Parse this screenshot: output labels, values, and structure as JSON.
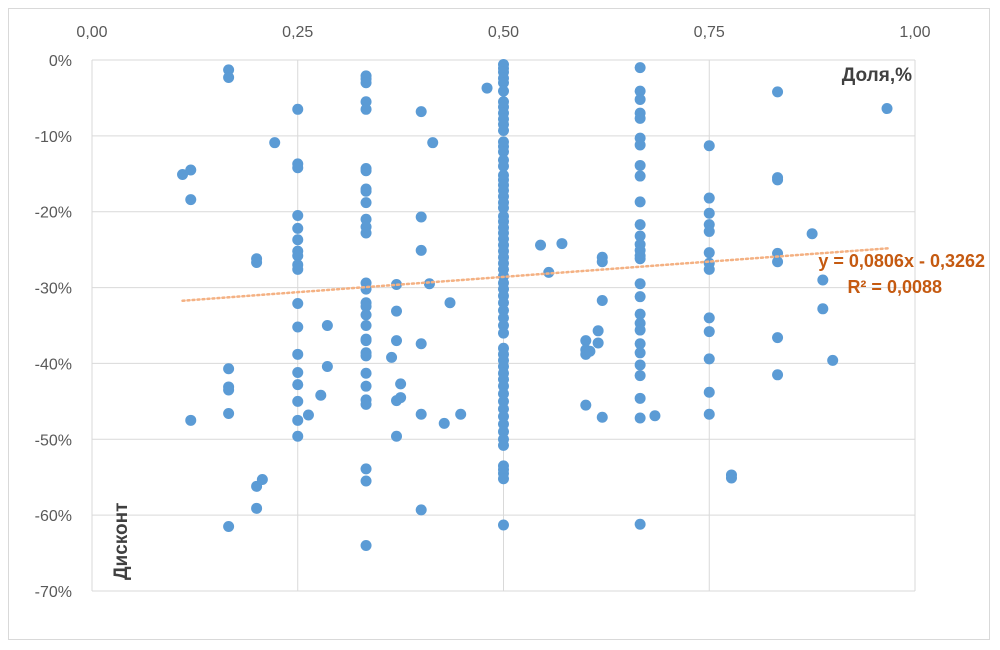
{
  "chart_data": {
    "type": "scatter",
    "title": "",
    "xlabel": "Доля,%",
    "ylabel": "Дисконт",
    "xlim": [
      0,
      1
    ],
    "ylim": [
      -0.7,
      0
    ],
    "x_ticks": [
      "0,00",
      "0,25",
      "0,50",
      "0,75",
      "1,00"
    ],
    "y_ticks": [
      "0%",
      "-10%",
      "-20%",
      "-30%",
      "-40%",
      "-50%",
      "-60%",
      "-70%"
    ],
    "x_axis_position": "top",
    "grid": true,
    "legend": "none",
    "marker_color": "#5b9bd5",
    "trendline": {
      "type": "linear",
      "slope": 0.0806,
      "intercept": -0.3262,
      "x_range": [
        0.11,
        0.97
      ],
      "equation": "y = 0,0806x - 0,3262",
      "r_squared": "R² = 0,0088",
      "color": "#f4b183",
      "label_color": "#c55a11"
    },
    "series": [
      {
        "points": [
          [
            0.11,
            -0.151
          ],
          [
            0.12,
            -0.145
          ],
          [
            0.12,
            -0.184
          ],
          [
            0.12,
            -0.475
          ],
          [
            0.166,
            -0.013
          ],
          [
            0.166,
            -0.023
          ],
          [
            0.166,
            -0.407
          ],
          [
            0.166,
            -0.431
          ],
          [
            0.166,
            -0.435
          ],
          [
            0.166,
            -0.466
          ],
          [
            0.166,
            -0.615
          ],
          [
            0.2,
            -0.262
          ],
          [
            0.2,
            -0.267
          ],
          [
            0.2,
            -0.562
          ],
          [
            0.2,
            -0.591
          ],
          [
            0.207,
            -0.553
          ],
          [
            0.222,
            -0.109
          ],
          [
            0.25,
            -0.065
          ],
          [
            0.25,
            -0.137
          ],
          [
            0.25,
            -0.142
          ],
          [
            0.25,
            -0.205
          ],
          [
            0.25,
            -0.222
          ],
          [
            0.25,
            -0.237
          ],
          [
            0.25,
            -0.252
          ],
          [
            0.25,
            -0.258
          ],
          [
            0.25,
            -0.27
          ],
          [
            0.25,
            -0.276
          ],
          [
            0.25,
            -0.321
          ],
          [
            0.25,
            -0.352
          ],
          [
            0.25,
            -0.388
          ],
          [
            0.25,
            -0.412
          ],
          [
            0.25,
            -0.428
          ],
          [
            0.25,
            -0.45
          ],
          [
            0.25,
            -0.475
          ],
          [
            0.25,
            -0.496
          ],
          [
            0.263,
            -0.468
          ],
          [
            0.278,
            -0.442
          ],
          [
            0.286,
            -0.35
          ],
          [
            0.286,
            -0.404
          ],
          [
            0.333,
            -0.021
          ],
          [
            0.333,
            -0.025
          ],
          [
            0.333,
            -0.03
          ],
          [
            0.333,
            -0.055
          ],
          [
            0.333,
            -0.065
          ],
          [
            0.333,
            -0.143
          ],
          [
            0.333,
            -0.146
          ],
          [
            0.333,
            -0.17
          ],
          [
            0.333,
            -0.173
          ],
          [
            0.333,
            -0.188
          ],
          [
            0.333,
            -0.21
          ],
          [
            0.333,
            -0.22
          ],
          [
            0.333,
            -0.228
          ],
          [
            0.333,
            -0.294
          ],
          [
            0.333,
            -0.302
          ],
          [
            0.333,
            -0.32
          ],
          [
            0.333,
            -0.325
          ],
          [
            0.333,
            -0.336
          ],
          [
            0.333,
            -0.35
          ],
          [
            0.333,
            -0.368
          ],
          [
            0.333,
            -0.37
          ],
          [
            0.333,
            -0.386
          ],
          [
            0.333,
            -0.39
          ],
          [
            0.333,
            -0.413
          ],
          [
            0.333,
            -0.43
          ],
          [
            0.333,
            -0.448
          ],
          [
            0.333,
            -0.454
          ],
          [
            0.333,
            -0.539
          ],
          [
            0.333,
            -0.555
          ],
          [
            0.333,
            -0.64
          ],
          [
            0.364,
            -0.392
          ],
          [
            0.37,
            -0.296
          ],
          [
            0.37,
            -0.331
          ],
          [
            0.37,
            -0.37
          ],
          [
            0.37,
            -0.449
          ],
          [
            0.37,
            -0.496
          ],
          [
            0.375,
            -0.427
          ],
          [
            0.375,
            -0.445
          ],
          [
            0.4,
            -0.068
          ],
          [
            0.4,
            -0.207
          ],
          [
            0.4,
            -0.251
          ],
          [
            0.4,
            -0.374
          ],
          [
            0.4,
            -0.467
          ],
          [
            0.4,
            -0.593
          ],
          [
            0.41,
            -0.295
          ],
          [
            0.414,
            -0.109
          ],
          [
            0.428,
            -0.479
          ],
          [
            0.435,
            -0.32
          ],
          [
            0.448,
            -0.467
          ],
          [
            0.48,
            -0.037
          ],
          [
            0.5,
            -0.006
          ],
          [
            0.5,
            -0.011
          ],
          [
            0.5,
            -0.016
          ],
          [
            0.5,
            -0.024
          ],
          [
            0.5,
            -0.03
          ],
          [
            0.5,
            -0.041
          ],
          [
            0.5,
            -0.055
          ],
          [
            0.5,
            -0.062
          ],
          [
            0.5,
            -0.07
          ],
          [
            0.5,
            -0.078
          ],
          [
            0.5,
            -0.085
          ],
          [
            0.5,
            -0.093
          ],
          [
            0.5,
            -0.108
          ],
          [
            0.5,
            -0.114
          ],
          [
            0.5,
            -0.121
          ],
          [
            0.5,
            -0.132
          ],
          [
            0.5,
            -0.14
          ],
          [
            0.5,
            -0.152
          ],
          [
            0.5,
            -0.158
          ],
          [
            0.5,
            -0.165
          ],
          [
            0.5,
            -0.172
          ],
          [
            0.5,
            -0.18
          ],
          [
            0.5,
            -0.188
          ],
          [
            0.5,
            -0.195
          ],
          [
            0.5,
            -0.206
          ],
          [
            0.5,
            -0.213
          ],
          [
            0.5,
            -0.221
          ],
          [
            0.5,
            -0.228
          ],
          [
            0.5,
            -0.236
          ],
          [
            0.5,
            -0.244
          ],
          [
            0.5,
            -0.252
          ],
          [
            0.5,
            -0.26
          ],
          [
            0.5,
            -0.268
          ],
          [
            0.5,
            -0.276
          ],
          [
            0.5,
            -0.285
          ],
          [
            0.5,
            -0.294
          ],
          [
            0.5,
            -0.302
          ],
          [
            0.5,
            -0.311
          ],
          [
            0.5,
            -0.32
          ],
          [
            0.5,
            -0.33
          ],
          [
            0.5,
            -0.34
          ],
          [
            0.5,
            -0.35
          ],
          [
            0.5,
            -0.36
          ],
          [
            0.5,
            -0.38
          ],
          [
            0.5,
            -0.388
          ],
          [
            0.5,
            -0.396
          ],
          [
            0.5,
            -0.404
          ],
          [
            0.5,
            -0.413
          ],
          [
            0.5,
            -0.421
          ],
          [
            0.5,
            -0.43
          ],
          [
            0.5,
            -0.44
          ],
          [
            0.5,
            -0.45
          ],
          [
            0.5,
            -0.46
          ],
          [
            0.5,
            -0.47
          ],
          [
            0.5,
            -0.48
          ],
          [
            0.5,
            -0.49
          ],
          [
            0.5,
            -0.5
          ],
          [
            0.5,
            -0.508
          ],
          [
            0.5,
            -0.535
          ],
          [
            0.5,
            -0.54
          ],
          [
            0.5,
            -0.545
          ],
          [
            0.5,
            -0.552
          ],
          [
            0.5,
            -0.613
          ],
          [
            0.545,
            -0.244
          ],
          [
            0.555,
            -0.28
          ],
          [
            0.571,
            -0.242
          ],
          [
            0.6,
            -0.37
          ],
          [
            0.6,
            -0.382
          ],
          [
            0.6,
            -0.388
          ],
          [
            0.6,
            -0.455
          ],
          [
            0.605,
            -0.384
          ],
          [
            0.615,
            -0.357
          ],
          [
            0.615,
            -0.373
          ],
          [
            0.62,
            -0.26
          ],
          [
            0.62,
            -0.266
          ],
          [
            0.62,
            -0.317
          ],
          [
            0.62,
            -0.471
          ],
          [
            0.666,
            -0.01
          ],
          [
            0.666,
            -0.041
          ],
          [
            0.666,
            -0.052
          ],
          [
            0.666,
            -0.07
          ],
          [
            0.666,
            -0.077
          ],
          [
            0.666,
            -0.103
          ],
          [
            0.666,
            -0.112
          ],
          [
            0.666,
            -0.139
          ],
          [
            0.666,
            -0.153
          ],
          [
            0.666,
            -0.187
          ],
          [
            0.666,
            -0.217
          ],
          [
            0.666,
            -0.232
          ],
          [
            0.666,
            -0.243
          ],
          [
            0.666,
            -0.251
          ],
          [
            0.666,
            -0.258
          ],
          [
            0.666,
            -0.262
          ],
          [
            0.666,
            -0.295
          ],
          [
            0.666,
            -0.312
          ],
          [
            0.666,
            -0.335
          ],
          [
            0.666,
            -0.347
          ],
          [
            0.666,
            -0.356
          ],
          [
            0.666,
            -0.374
          ],
          [
            0.666,
            -0.386
          ],
          [
            0.666,
            -0.402
          ],
          [
            0.666,
            -0.416
          ],
          [
            0.666,
            -0.446
          ],
          [
            0.666,
            -0.472
          ],
          [
            0.666,
            -0.612
          ],
          [
            0.684,
            -0.469
          ],
          [
            0.75,
            -0.113
          ],
          [
            0.75,
            -0.182
          ],
          [
            0.75,
            -0.202
          ],
          [
            0.75,
            -0.217
          ],
          [
            0.75,
            -0.226
          ],
          [
            0.75,
            -0.254
          ],
          [
            0.75,
            -0.268
          ],
          [
            0.75,
            -0.276
          ],
          [
            0.75,
            -0.34
          ],
          [
            0.75,
            -0.358
          ],
          [
            0.75,
            -0.394
          ],
          [
            0.75,
            -0.438
          ],
          [
            0.75,
            -0.467
          ],
          [
            0.777,
            -0.547
          ],
          [
            0.777,
            -0.551
          ],
          [
            0.833,
            -0.042
          ],
          [
            0.833,
            -0.155
          ],
          [
            0.833,
            -0.158
          ],
          [
            0.833,
            -0.255
          ],
          [
            0.833,
            -0.266
          ],
          [
            0.833,
            -0.366
          ],
          [
            0.833,
            -0.415
          ],
          [
            0.875,
            -0.229
          ],
          [
            0.888,
            -0.29
          ],
          [
            0.888,
            -0.328
          ],
          [
            0.9,
            -0.396
          ],
          [
            0.966,
            -0.064
          ]
        ]
      }
    ]
  }
}
